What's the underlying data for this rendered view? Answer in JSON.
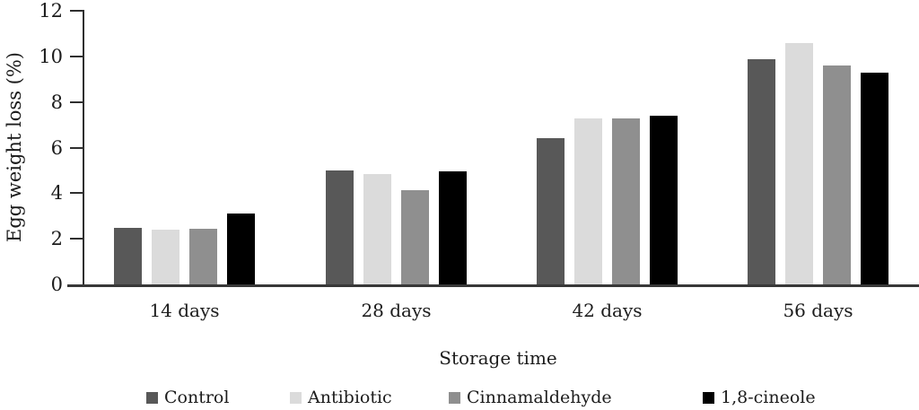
{
  "chart_data": {
    "type": "bar",
    "title": "",
    "xlabel": "Storage time",
    "ylabel": "Egg weight loss (%)",
    "ylim": [
      0,
      12
    ],
    "yticks": [
      0,
      2,
      4,
      6,
      8,
      10,
      12
    ],
    "grid": false,
    "legend_position": "bottom",
    "categories": [
      "14 days",
      "28 days",
      "42 days",
      "56 days"
    ],
    "series": [
      {
        "name": "Control",
        "color": "#585858",
        "values": [
          2.5,
          5.0,
          6.4,
          9.9
        ]
      },
      {
        "name": "Antibiotic",
        "color": "#dbdbdb",
        "values": [
          2.4,
          4.85,
          7.3,
          10.6
        ]
      },
      {
        "name": "Cinnamaldehyde",
        "color": "#8f8f8f",
        "values": [
          2.45,
          4.15,
          7.3,
          9.6
        ]
      },
      {
        "name": "1,8-cineole",
        "color": "#000000",
        "values": [
          3.1,
          4.95,
          7.4,
          9.3
        ]
      }
    ]
  }
}
